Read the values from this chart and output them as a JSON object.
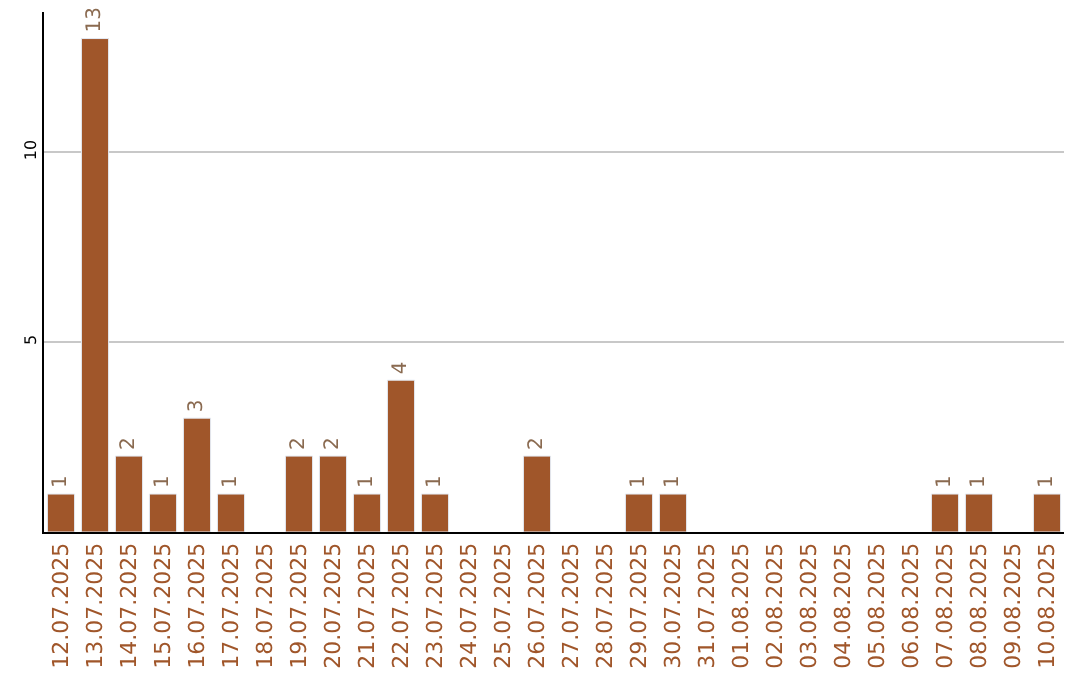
{
  "chart_data": {
    "type": "bar",
    "categories": [
      "12.07.2025",
      "13.07.2025",
      "14.07.2025",
      "15.07.2025",
      "16.07.2025",
      "17.07.2025",
      "18.07.2025",
      "19.07.2025",
      "20.07.2025",
      "21.07.2025",
      "22.07.2025",
      "23.07.2025",
      "24.07.2025",
      "25.07.2025",
      "26.07.2025",
      "27.07.2025",
      "28.07.2025",
      "29.07.2025",
      "30.07.2025",
      "31.07.2025",
      "01.08.2025",
      "02.08.2025",
      "03.08.2025",
      "04.08.2025",
      "05.08.2025",
      "06.08.2025",
      "07.08.2025",
      "08.08.2025",
      "09.08.2025",
      "10.08.2025"
    ],
    "values": [
      1,
      13,
      2,
      1,
      3,
      1,
      null,
      2,
      2,
      1,
      4,
      1,
      null,
      null,
      2,
      null,
      null,
      1,
      1,
      null,
      null,
      null,
      null,
      null,
      null,
      null,
      1,
      1,
      null,
      1
    ],
    "value_labels": [
      "1",
      "13",
      "2",
      "1",
      "3",
      "1",
      null,
      "2",
      "2",
      "1",
      "4",
      "1",
      null,
      null,
      "2",
      null,
      null,
      "1",
      "1",
      null,
      null,
      null,
      null,
      null,
      null,
      null,
      "1",
      "1",
      null,
      "1"
    ],
    "color": "#a0562a",
    "ylim": [
      0,
      13.7
    ],
    "yticks": [
      5,
      10
    ],
    "grid": "y",
    "legend": false
  }
}
